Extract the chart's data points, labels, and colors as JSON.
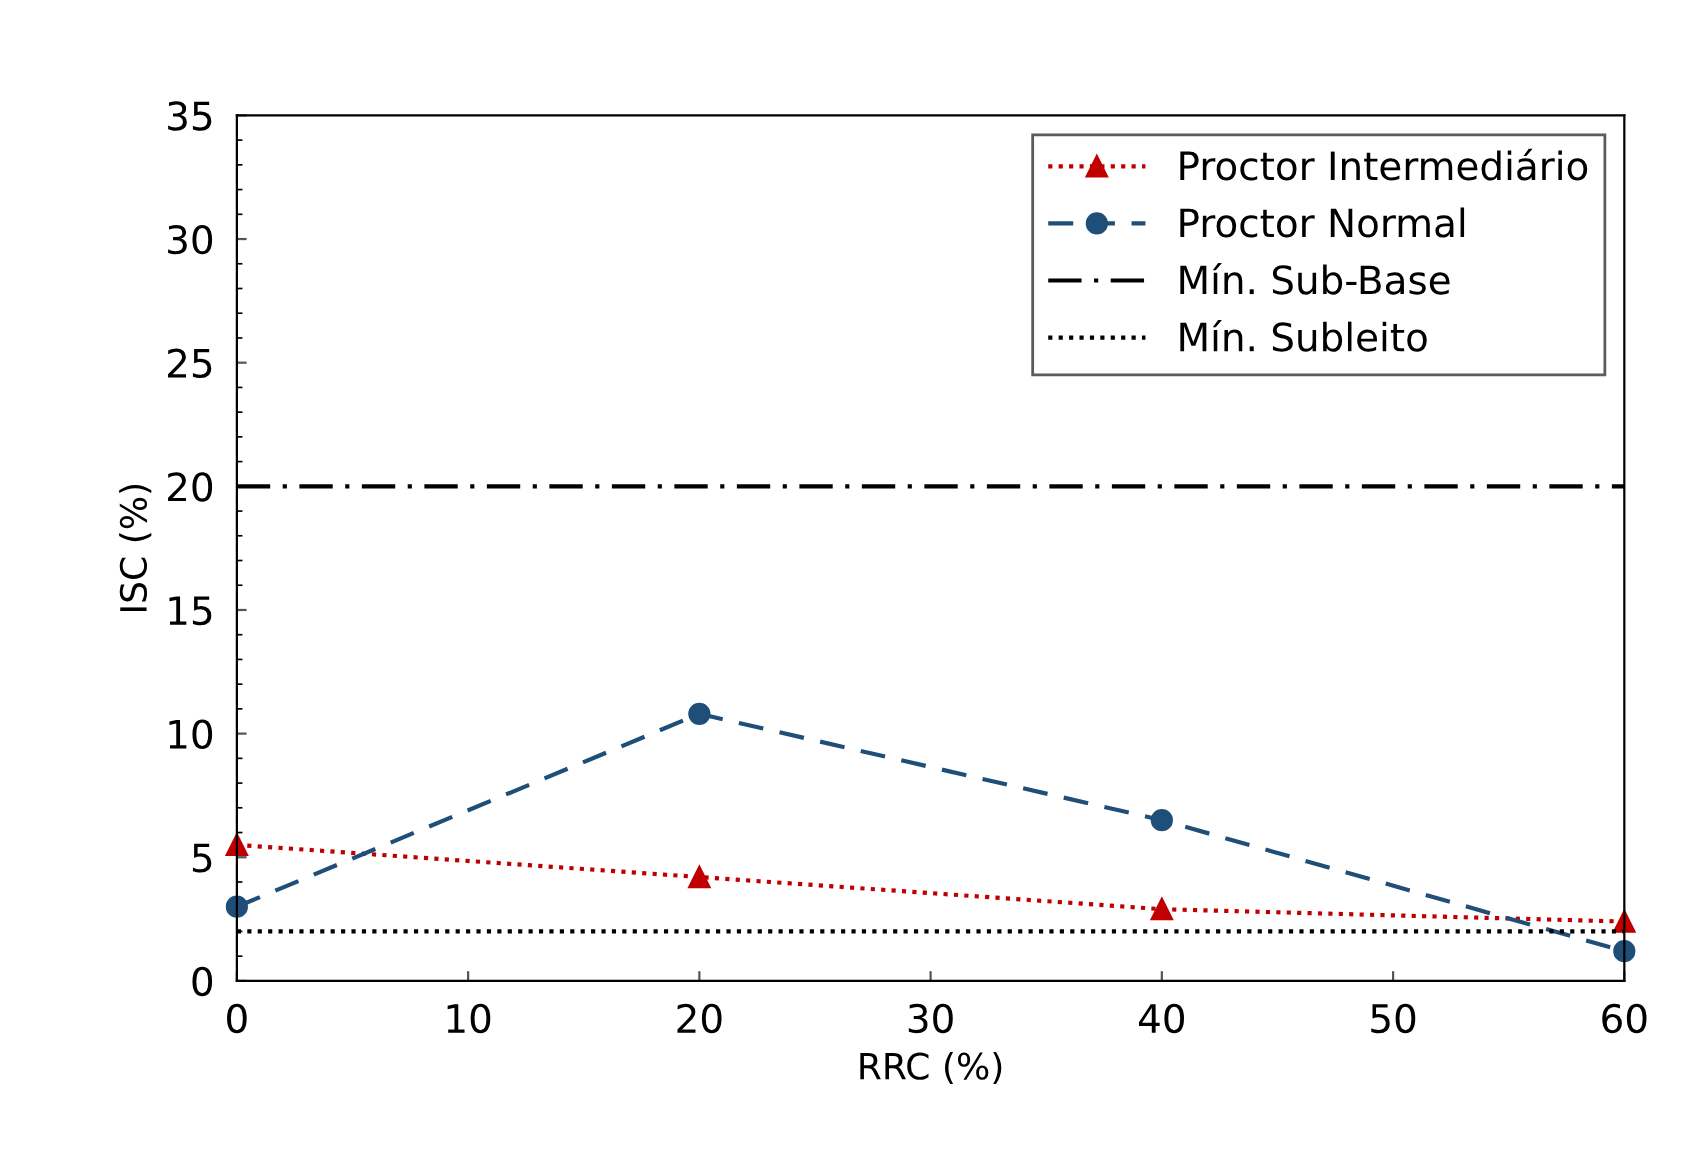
{
  "chart_data": {
    "type": "line",
    "xlabel": "RRC (%)",
    "ylabel": "ISC (%)",
    "x": [
      0,
      20,
      40,
      60
    ],
    "series": [
      {
        "name": "Proctor Intermediário",
        "color": "#c00000",
        "values": [
          5.5,
          4.2,
          2.9,
          2.4
        ],
        "marker": "triangle",
        "line_style": "dotted"
      },
      {
        "name": "Proctor Normal",
        "color": "#1f4e79",
        "values": [
          3.0,
          10.8,
          6.5,
          1.2
        ],
        "marker": "circle",
        "line_style": "dashed"
      }
    ],
    "ref_lines": [
      {
        "axis": "y",
        "value": 20,
        "label": "Mín. Sub-Base",
        "color": "#000000",
        "line_style": "dashdot"
      },
      {
        "axis": "y",
        "value": 2,
        "label": "Mín. Subleito",
        "color": "#000000",
        "line_style": "dotted"
      }
    ],
    "xlim": [
      0,
      60
    ],
    "xticks": [
      0,
      10,
      20,
      30,
      40,
      50,
      60
    ],
    "ylim": [
      0,
      35
    ],
    "yticks": [
      0,
      5,
      10,
      15,
      20,
      25,
      30,
      35
    ],
    "grid": false,
    "legend": "top right"
  }
}
